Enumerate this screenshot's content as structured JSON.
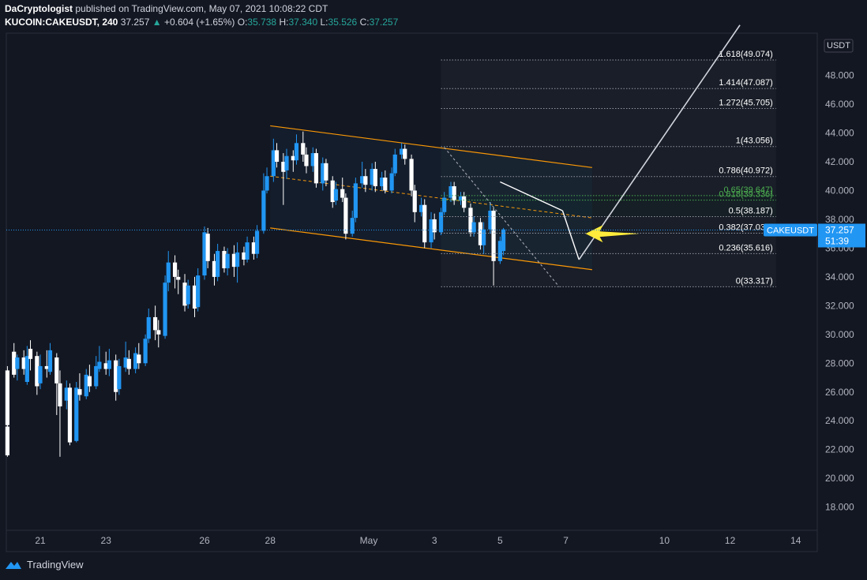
{
  "header": {
    "author": "DaCryptologist",
    "published_text": "published on TradingView.com, May 07, 2021 10:08:22 CDT",
    "symbol": "KUCOIN:CAKEUSDT, 240",
    "last": "37.257",
    "change": "+0.604 (+1.65%)",
    "o_label": "O:",
    "o": "35.738",
    "h_label": "H:",
    "h": "37.340",
    "l_label": "L:",
    "l": "35.526",
    "c_label": "C:",
    "c": "37.257"
  },
  "footer": {
    "brand": "TradingView"
  },
  "colors": {
    "up": "#2196f3",
    "down": "#ffffff",
    "channel": "#ff9800",
    "fib": "#d1d4dc",
    "fib_green": "#4caf50",
    "arrow": "#ffeb3b",
    "bg": "#131722",
    "price_tag": "#2196f3"
  },
  "chart_data": {
    "type": "candlestick",
    "interval": "240",
    "currency_label": "USDT",
    "y_ticks": [
      "18.000",
      "20.000",
      "22.000",
      "24.000",
      "26.000",
      "28.000",
      "30.000",
      "32.000",
      "34.000",
      "36.000",
      "38.000",
      "40.000",
      "42.000",
      "44.000",
      "46.000",
      "48.000"
    ],
    "x_ticks": [
      {
        "label": "21",
        "day": 21
      },
      {
        "label": "23",
        "day": 23
      },
      {
        "label": "26",
        "day": 26
      },
      {
        "label": "28",
        "day": 28
      },
      {
        "label": "May",
        "day": 31
      },
      {
        "label": "3",
        "day": 33
      },
      {
        "label": "5",
        "day": 35
      },
      {
        "label": "7",
        "day": 37
      },
      {
        "label": "10",
        "day": 40
      },
      {
        "label": "12",
        "day": 42
      },
      {
        "label": "14",
        "day": 44
      }
    ],
    "ylim": [
      16.5,
      50.5
    ],
    "price_tag": {
      "symbol": "CAKEUSDT",
      "price": "37.257",
      "countdown": "51:39"
    },
    "fib_levels": [
      {
        "label": "1.618(49.074)",
        "value": 49.074
      },
      {
        "label": "1.414(47.087)",
        "value": 47.087
      },
      {
        "label": "1.272(45.705)",
        "value": 45.705
      },
      {
        "label": "1(43.056)",
        "value": 43.056
      },
      {
        "label": "0.786(40.972)",
        "value": 40.972
      },
      {
        "label": "0.65(39.647)",
        "value": 39.647,
        "green": true
      },
      {
        "label": "0.618(39.336)",
        "value": 39.336,
        "green": true
      },
      {
        "label": "0.5(38.187)",
        "value": 38.187
      },
      {
        "label": "0.382(37.037)",
        "value": 37.037
      },
      {
        "label": "0.236(35.616)",
        "value": 35.616
      },
      {
        "label": "0(33.317)",
        "value": 33.317
      }
    ],
    "candles": [
      [
        20.0,
        23.6,
        21.6,
        25.2,
        21.5
      ],
      [
        20.0,
        27.5,
        23.7,
        27.8,
        23.4
      ],
      [
        20.2,
        28.8,
        27.2,
        29.4,
        27.0
      ],
      [
        20.3,
        27.6,
        28.4,
        28.6,
        26.8
      ],
      [
        20.5,
        28.4,
        27.6,
        28.9,
        27.2
      ],
      [
        20.6,
        26.7,
        28.5,
        29.2,
        26.5
      ],
      [
        20.7,
        29.0,
        28.3,
        29.6,
        27.5
      ],
      [
        20.9,
        28.5,
        26.4,
        28.8,
        25.8
      ],
      [
        21.0,
        26.6,
        27.8,
        28.6,
        26.2
      ],
      [
        21.2,
        27.8,
        27.6,
        28.9,
        27.0
      ],
      [
        21.3,
        27.4,
        28.9,
        29.4,
        27.2
      ],
      [
        21.5,
        28.4,
        26.6,
        28.7,
        24.4
      ],
      [
        21.6,
        26.6,
        25.0,
        27.5,
        21.5
      ],
      [
        21.8,
        25.4,
        26.3,
        26.8,
        24.8
      ],
      [
        21.9,
        26.3,
        22.5,
        26.6,
        22.3
      ],
      [
        22.1,
        22.6,
        26.3,
        26.7,
        22.5
      ],
      [
        22.2,
        26.2,
        25.8,
        27.3,
        25.4
      ],
      [
        22.4,
        25.7,
        27.2,
        27.6,
        25.5
      ],
      [
        22.5,
        27.1,
        26.4,
        27.9,
        26.0
      ],
      [
        22.7,
        26.4,
        27.8,
        28.5,
        26.2
      ],
      [
        22.8,
        27.6,
        28.1,
        29.2,
        27.4
      ],
      [
        23.0,
        28.0,
        27.6,
        28.8,
        27.2
      ],
      [
        23.1,
        27.6,
        28.2,
        29.0,
        27.1
      ],
      [
        23.3,
        28.2,
        26.0,
        28.6,
        25.4
      ],
      [
        23.4,
        26.2,
        27.8,
        28.3,
        25.8
      ],
      [
        23.6,
        27.7,
        28.4,
        29.5,
        27.4
      ],
      [
        23.7,
        28.3,
        27.6,
        28.9,
        27.2
      ],
      [
        23.9,
        27.6,
        28.7,
        29.1,
        27.3
      ],
      [
        24.0,
        28.6,
        28.0,
        29.4,
        27.6
      ],
      [
        24.2,
        28.0,
        29.7,
        30.0,
        27.8
      ],
      [
        24.3,
        29.7,
        31.2,
        31.8,
        29.4
      ],
      [
        24.5,
        31.2,
        30.3,
        32.0,
        29.6
      ],
      [
        24.6,
        30.3,
        30.0,
        31.0,
        29.1
      ],
      [
        24.8,
        29.9,
        33.6,
        34.1,
        29.7
      ],
      [
        24.9,
        33.6,
        35.0,
        35.8,
        33.0
      ],
      [
        25.1,
        35.0,
        34.0,
        35.5,
        33.2
      ],
      [
        25.2,
        34.0,
        33.8,
        34.5,
        32.8
      ],
      [
        25.4,
        33.6,
        32.0,
        34.2,
        31.6
      ],
      [
        25.5,
        32.1,
        33.4,
        33.8,
        31.8
      ],
      [
        25.7,
        33.4,
        31.8,
        34.0,
        31.2
      ],
      [
        25.8,
        31.9,
        34.1,
        34.6,
        31.6
      ],
      [
        26.0,
        34.1,
        37.1,
        37.5,
        33.8
      ],
      [
        26.1,
        37.0,
        35.1,
        37.4,
        34.6
      ],
      [
        26.3,
        35.1,
        34.0,
        35.6,
        33.4
      ],
      [
        26.4,
        34.0,
        35.8,
        36.3,
        33.7
      ],
      [
        26.6,
        35.8,
        34.6,
        36.1,
        34.3
      ],
      [
        26.7,
        34.6,
        35.6,
        36.0,
        34.1
      ],
      [
        26.9,
        35.6,
        34.7,
        36.2,
        34.0
      ],
      [
        27.0,
        34.7,
        35.7,
        36.4,
        33.6
      ],
      [
        27.2,
        35.7,
        35.2,
        36.1,
        34.8
      ],
      [
        27.3,
        35.2,
        36.4,
        36.8,
        35.0
      ],
      [
        27.5,
        36.4,
        35.6,
        36.8,
        35.2
      ],
      [
        27.6,
        35.6,
        37.2,
        37.6,
        35.3
      ],
      [
        27.8,
        37.2,
        40.0,
        41.2,
        37.0
      ],
      [
        27.9,
        40.0,
        41.0,
        41.6,
        39.8
      ],
      [
        28.1,
        41.0,
        42.8,
        43.6,
        40.6
      ],
      [
        28.2,
        42.8,
        42.0,
        43.3,
        41.6
      ],
      [
        28.4,
        42.0,
        41.3,
        42.6,
        39.0
      ],
      [
        28.5,
        41.4,
        42.4,
        42.9,
        40.8
      ],
      [
        28.7,
        42.4,
        42.1,
        42.8,
        41.3
      ],
      [
        28.8,
        42.1,
        43.3,
        43.9,
        41.8
      ],
      [
        29.0,
        43.3,
        42.5,
        44.1,
        42.0
      ],
      [
        29.1,
        42.5,
        41.7,
        43.0,
        41.2
      ],
      [
        29.3,
        41.7,
        42.6,
        43.0,
        41.3
      ],
      [
        29.4,
        42.6,
        40.5,
        42.9,
        40.2
      ],
      [
        29.6,
        40.5,
        41.9,
        42.3,
        40.0
      ],
      [
        29.7,
        41.9,
        40.7,
        42.2,
        40.3
      ],
      [
        29.9,
        40.7,
        39.2,
        41.0,
        38.8
      ],
      [
        30.0,
        39.3,
        40.1,
        40.6,
        39.0
      ],
      [
        30.2,
        40.1,
        39.5,
        40.9,
        39.2
      ],
      [
        30.3,
        39.5,
        37.0,
        39.8,
        36.6
      ],
      [
        30.5,
        37.0,
        38.1,
        38.6,
        36.8
      ],
      [
        30.6,
        38.1,
        40.5,
        40.9,
        37.8
      ],
      [
        30.8,
        40.5,
        41.0,
        42.0,
        40.2
      ],
      [
        30.9,
        41.0,
        40.4,
        41.5,
        39.9
      ],
      [
        31.1,
        40.4,
        41.5,
        41.9,
        40.0
      ],
      [
        31.2,
        41.5,
        40.3,
        42.0,
        39.9
      ],
      [
        31.4,
        40.3,
        40.9,
        41.3,
        40.0
      ],
      [
        31.5,
        40.9,
        40.0,
        41.4,
        39.8
      ],
      [
        31.7,
        40.0,
        41.2,
        41.6,
        39.8
      ],
      [
        31.8,
        41.2,
        42.5,
        42.9,
        41.0
      ],
      [
        32.0,
        42.5,
        42.9,
        43.3,
        42.2
      ],
      [
        32.1,
        42.9,
        42.2,
        43.2,
        41.8
      ],
      [
        32.3,
        42.2,
        40.0,
        42.5,
        39.6
      ],
      [
        32.4,
        40.0,
        38.5,
        40.4,
        37.8
      ],
      [
        32.6,
        38.5,
        39.0,
        39.5,
        38.2
      ],
      [
        32.7,
        39.0,
        36.4,
        39.4,
        36.0
      ],
      [
        32.9,
        36.4,
        38.0,
        38.5,
        36.0
      ],
      [
        33.0,
        38.0,
        37.1,
        38.4,
        36.6
      ],
      [
        33.2,
        37.1,
        38.5,
        38.8,
        36.9
      ],
      [
        33.3,
        38.5,
        39.5,
        39.9,
        38.3
      ],
      [
        33.5,
        39.5,
        40.3,
        40.6,
        39.2
      ],
      [
        33.6,
        40.3,
        39.3,
        40.6,
        39.0
      ],
      [
        33.8,
        39.3,
        39.6,
        39.9,
        39.0
      ],
      [
        33.9,
        39.6,
        38.8,
        39.9,
        38.5
      ],
      [
        34.1,
        38.8,
        37.1,
        39.1,
        36.8
      ],
      [
        34.2,
        37.1,
        37.8,
        38.2,
        36.8
      ],
      [
        34.4,
        37.8,
        36.2,
        38.1,
        35.9
      ],
      [
        34.5,
        36.2,
        37.3,
        37.8,
        35.6
      ],
      [
        34.7,
        37.3,
        38.6,
        39.2,
        37.0
      ],
      [
        34.8,
        38.6,
        35.1,
        38.8,
        33.4
      ],
      [
        35.0,
        35.1,
        36.5,
        36.8,
        34.9
      ],
      [
        35.1,
        35.8,
        37.3,
        37.4,
        35.5
      ]
    ]
  }
}
